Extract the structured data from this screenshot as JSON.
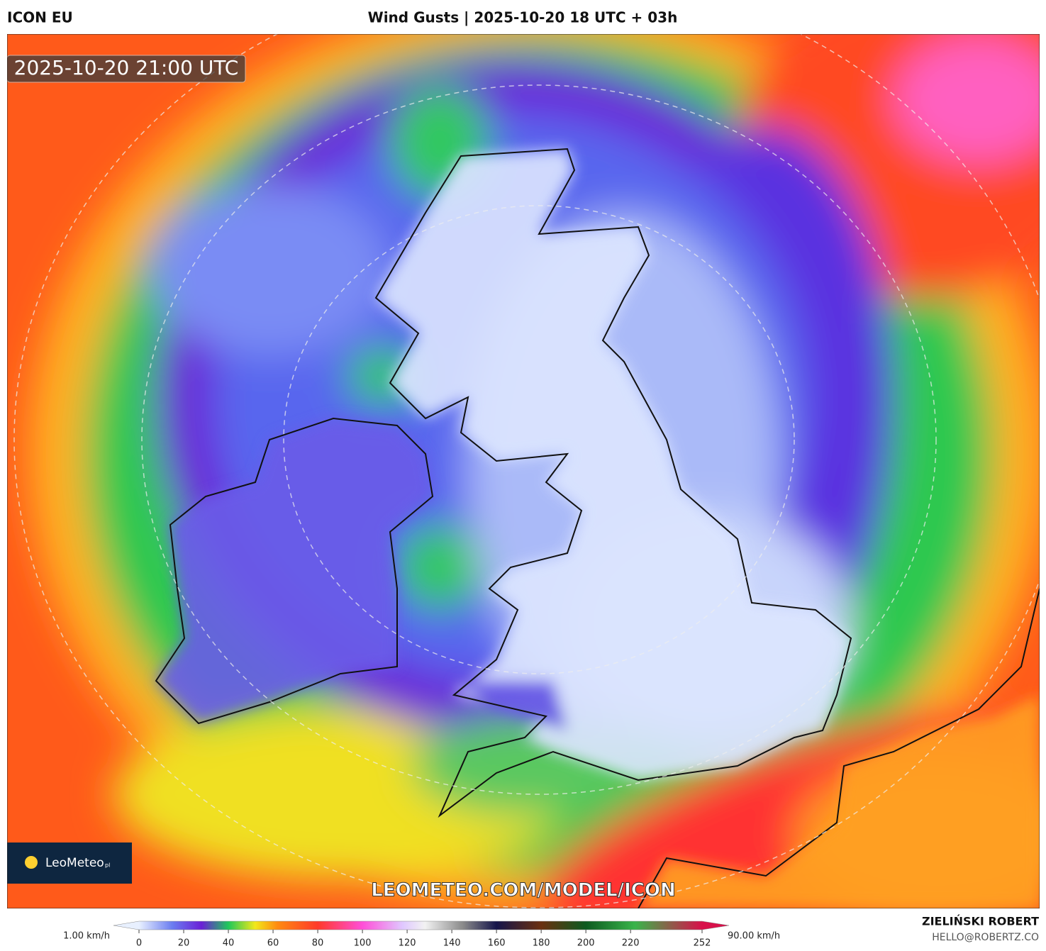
{
  "header": {
    "model": "ICON EU",
    "title": "Wind Gusts | 2025-10-20 18 UTC + 03h"
  },
  "map": {
    "timestamp": "2025-10-20 21:00 UTC",
    "watermark": "LEOMETEO.COM/MODEL/ICON",
    "logo": "LeoMeteo",
    "logo_suffix": "pl"
  },
  "colorbar": {
    "min_label": "1.00 km/h",
    "max_label": "90.00 km/h",
    "range": [
      0,
      252
    ],
    "ticks": [
      0,
      20,
      40,
      60,
      80,
      100,
      120,
      140,
      160,
      180,
      200,
      220,
      252
    ],
    "stops": [
      {
        "value": 0,
        "color": "#e8f0ff"
      },
      {
        "value": 15,
        "color": "#6a7cf0"
      },
      {
        "value": 28,
        "color": "#6a1fd6"
      },
      {
        "value": 40,
        "color": "#1fc85a"
      },
      {
        "value": 52,
        "color": "#f2e81a"
      },
      {
        "value": 62,
        "color": "#ff8a10"
      },
      {
        "value": 80,
        "color": "#ff3a2a"
      },
      {
        "value": 100,
        "color": "#ff4fd8"
      },
      {
        "value": 118,
        "color": "#e0c8ff"
      },
      {
        "value": 128,
        "color": "#f2f2f2"
      },
      {
        "value": 145,
        "color": "#8a8a8a"
      },
      {
        "value": 160,
        "color": "#15154a"
      },
      {
        "value": 180,
        "color": "#6a3010"
      },
      {
        "value": 200,
        "color": "#0d5a20"
      },
      {
        "value": 222,
        "color": "#39b44a"
      },
      {
        "value": 252,
        "color": "#d8104a"
      }
    ]
  },
  "credit": {
    "author": "ZIELIŃSKI ROBERT",
    "email": "HELLO@ROBERTZ.CO"
  }
}
